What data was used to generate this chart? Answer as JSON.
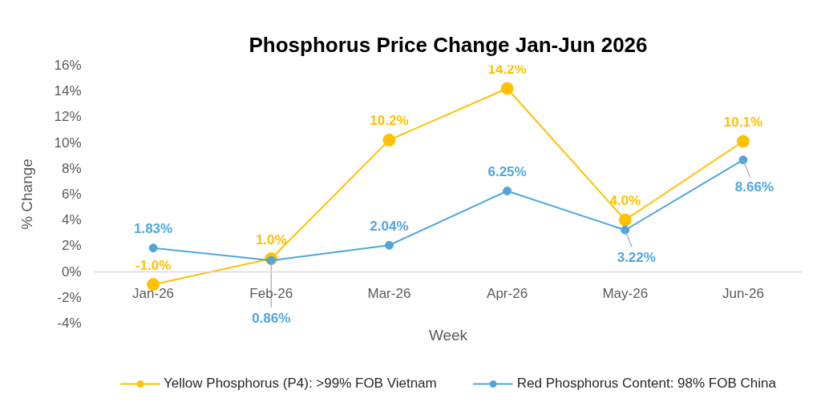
{
  "chart_data": {
    "type": "line",
    "title": "Phosphorus Price Change Jan-Jun 2026",
    "xlabel": "Week",
    "ylabel": "% Change",
    "categories": [
      "Jan-26",
      "Feb-26",
      "Mar-26",
      "Apr-26",
      "May-26",
      "Jun-26"
    ],
    "series": [
      {
        "name": "Yellow Phosphorus (P4): >99% FOB Vietnam",
        "color": "#ffc000",
        "values": [
          -1.0,
          1.0,
          10.2,
          14.2,
          4.0,
          10.1
        ],
        "value_labels": [
          "-1.0%",
          "1.0%",
          "10.2%",
          "14.2%",
          "4.0%",
          "10.1%"
        ]
      },
      {
        "name": "Red Phosphorus Content: 98% FOB China",
        "color": "#4ea6dc",
        "values": [
          1.83,
          0.86,
          2.04,
          6.25,
          3.22,
          8.66
        ],
        "value_labels": [
          "1.83%",
          "0.86%",
          "2.04%",
          "6.25%",
          "3.22%",
          "8.66%"
        ]
      }
    ],
    "ylim": [
      -4,
      16
    ],
    "yticks": [
      {
        "value": -4,
        "label": "-4%"
      },
      {
        "value": -2,
        "label": "-2%"
      },
      {
        "value": 0,
        "label": "0%"
      },
      {
        "value": 2,
        "label": "2%"
      },
      {
        "value": 4,
        "label": "4%"
      },
      {
        "value": 6,
        "label": "6%"
      },
      {
        "value": 8,
        "label": "8%"
      },
      {
        "value": 10,
        "label": "10%"
      },
      {
        "value": 12,
        "label": "12%"
      },
      {
        "value": 14,
        "label": "14%"
      },
      {
        "value": 16,
        "label": "16%"
      }
    ],
    "grid": false,
    "legend": "bottom",
    "marker": "circle",
    "line_style": "solid"
  }
}
